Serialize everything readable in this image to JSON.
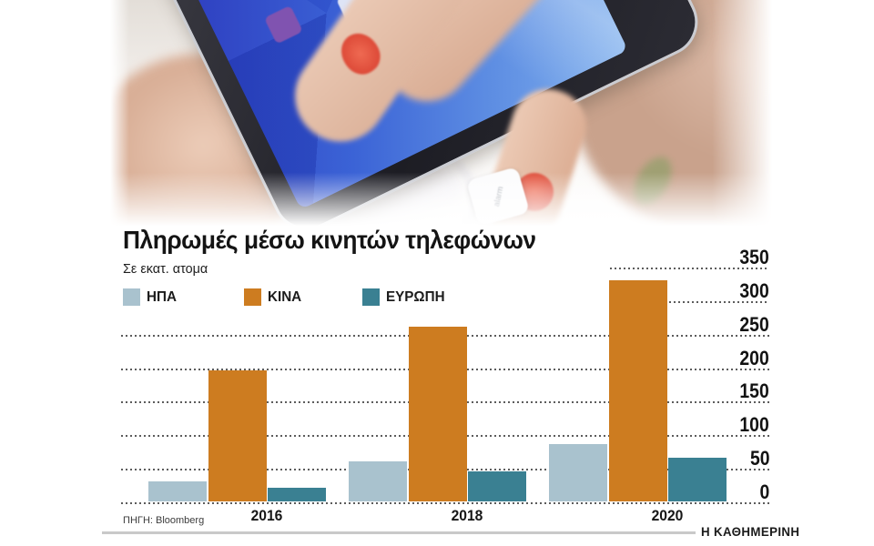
{
  "header": {
    "title": "Πληρωμές μέσω κινητών τηλεφώνων",
    "subtitle": "Σε εκατ. ατομα"
  },
  "footer": {
    "source": "ΠΗΓΗ: Bloomberg",
    "brand": "Η ΚΑΘΗΜΕΡΙΝΗ"
  },
  "photo": {
    "tag_label": "alarm"
  },
  "chart_data": {
    "type": "bar",
    "title": "Πληρωμές μέσω κινητών τηλεφώνων",
    "subtitle": "Σε εκατ. ατομα",
    "categories": [
      "2016",
      "2018",
      "2020"
    ],
    "series": [
      {
        "name": "ΗΠΑ",
        "color": "#a9c2ce",
        "values": [
          30,
          60,
          85
        ]
      },
      {
        "name": "ΚΙΝΑ",
        "color": "#cd7c20",
        "values": [
          195,
          260,
          330
        ]
      },
      {
        "name": "ΕΥΡΩΠΗ",
        "color": "#3a8092",
        "values": [
          20,
          45,
          65
        ]
      }
    ],
    "ylim": [
      0,
      350
    ],
    "yticks": [
      0,
      50,
      100,
      150,
      200,
      250,
      300,
      350
    ],
    "value_axis_side": "right",
    "grid": "dotted-horizontal",
    "legend_position": "top-left",
    "source": "Bloomberg"
  }
}
